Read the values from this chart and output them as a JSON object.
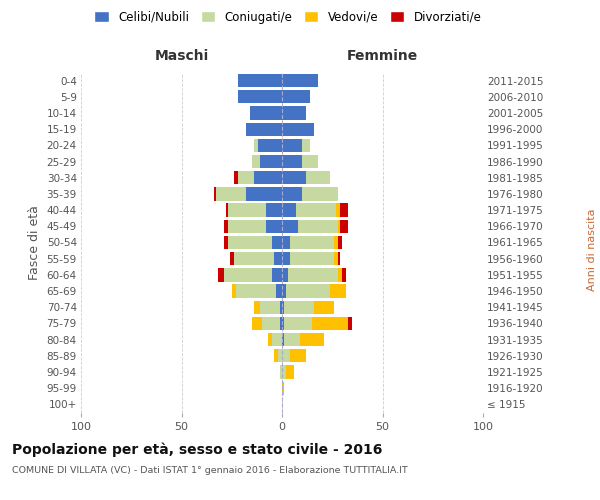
{
  "age_groups": [
    "100+",
    "95-99",
    "90-94",
    "85-89",
    "80-84",
    "75-79",
    "70-74",
    "65-69",
    "60-64",
    "55-59",
    "50-54",
    "45-49",
    "40-44",
    "35-39",
    "30-34",
    "25-29",
    "20-24",
    "15-19",
    "10-14",
    "5-9",
    "0-4"
  ],
  "birth_years": [
    "≤ 1915",
    "1916-1920",
    "1921-1925",
    "1926-1930",
    "1931-1935",
    "1936-1940",
    "1941-1945",
    "1946-1950",
    "1951-1955",
    "1956-1960",
    "1961-1965",
    "1966-1970",
    "1971-1975",
    "1976-1980",
    "1981-1985",
    "1986-1990",
    "1991-1995",
    "1996-2000",
    "2001-2005",
    "2006-2010",
    "2011-2015"
  ],
  "male": {
    "celibi": [
      0,
      0,
      0,
      0,
      0,
      1,
      1,
      3,
      5,
      4,
      5,
      8,
      8,
      18,
      14,
      11,
      12,
      18,
      16,
      22,
      22
    ],
    "coniugati": [
      0,
      0,
      1,
      2,
      5,
      9,
      10,
      20,
      24,
      20,
      22,
      19,
      19,
      15,
      8,
      4,
      2,
      0,
      0,
      0,
      0
    ],
    "vedovi": [
      0,
      0,
      0,
      2,
      2,
      5,
      3,
      2,
      0,
      0,
      0,
      0,
      0,
      0,
      0,
      0,
      0,
      0,
      0,
      0,
      0
    ],
    "divorziati": [
      0,
      0,
      0,
      0,
      0,
      0,
      0,
      0,
      3,
      2,
      2,
      2,
      1,
      1,
      2,
      0,
      0,
      0,
      0,
      0,
      0
    ]
  },
  "female": {
    "nubili": [
      0,
      0,
      0,
      0,
      1,
      1,
      1,
      2,
      3,
      4,
      4,
      8,
      7,
      10,
      12,
      10,
      10,
      16,
      12,
      14,
      18
    ],
    "coniugate": [
      0,
      0,
      2,
      4,
      8,
      14,
      15,
      22,
      25,
      22,
      22,
      20,
      20,
      18,
      12,
      8,
      4,
      0,
      0,
      0,
      0
    ],
    "vedove": [
      0,
      1,
      4,
      8,
      12,
      18,
      10,
      8,
      2,
      2,
      2,
      1,
      2,
      0,
      0,
      0,
      0,
      0,
      0,
      0,
      0
    ],
    "divorziate": [
      0,
      0,
      0,
      0,
      0,
      2,
      0,
      0,
      2,
      1,
      2,
      4,
      4,
      0,
      0,
      0,
      0,
      0,
      0,
      0,
      0
    ]
  },
  "colors": {
    "celibi": "#4472c4",
    "coniugati": "#c5d9a0",
    "vedovi": "#ffc000",
    "divorziati": "#cc0000"
  },
  "title": "Popolazione per età, sesso e stato civile - 2016",
  "subtitle": "COMUNE DI VILLATA (VC) - Dati ISTAT 1° gennaio 2016 - Elaborazione TUTTITALIA.IT",
  "xlabel_left": "Maschi",
  "xlabel_right": "Femmine",
  "ylabel_left": "Fasce di età",
  "ylabel_right": "Anni di nascita",
  "xlim": 100,
  "legend_labels": [
    "Celibi/Nubili",
    "Coniugati/e",
    "Vedovi/e",
    "Divorziati/e"
  ],
  "background_color": "#ffffff",
  "grid_color": "#cccccc"
}
